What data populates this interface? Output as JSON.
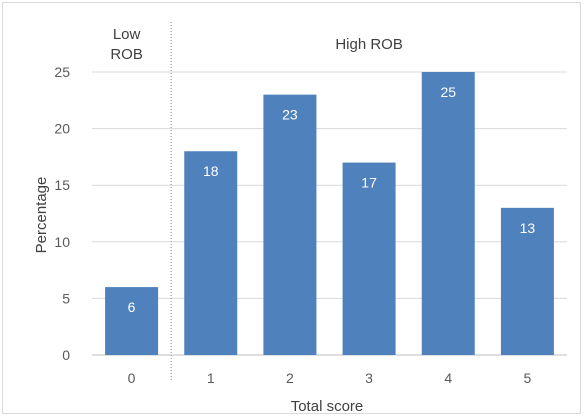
{
  "chart_data": {
    "type": "bar",
    "title": "",
    "categories": [
      "0",
      "1",
      "2",
      "3",
      "4",
      "5"
    ],
    "values": [
      6,
      18,
      23,
      17,
      25,
      13
    ],
    "data_labels": [
      "6",
      "18",
      "23",
      "17",
      "25",
      "13"
    ],
    "xlabel": "Total score",
    "ylabel": "Percentage",
    "ylim": [
      0,
      25
    ],
    "yticks": [
      "0",
      "5",
      "10",
      "15",
      "20",
      "25"
    ],
    "grid": true,
    "bar_color": "#4f81bd",
    "group_labels": {
      "low": "Low\nROB",
      "high": "High ROB"
    }
  }
}
